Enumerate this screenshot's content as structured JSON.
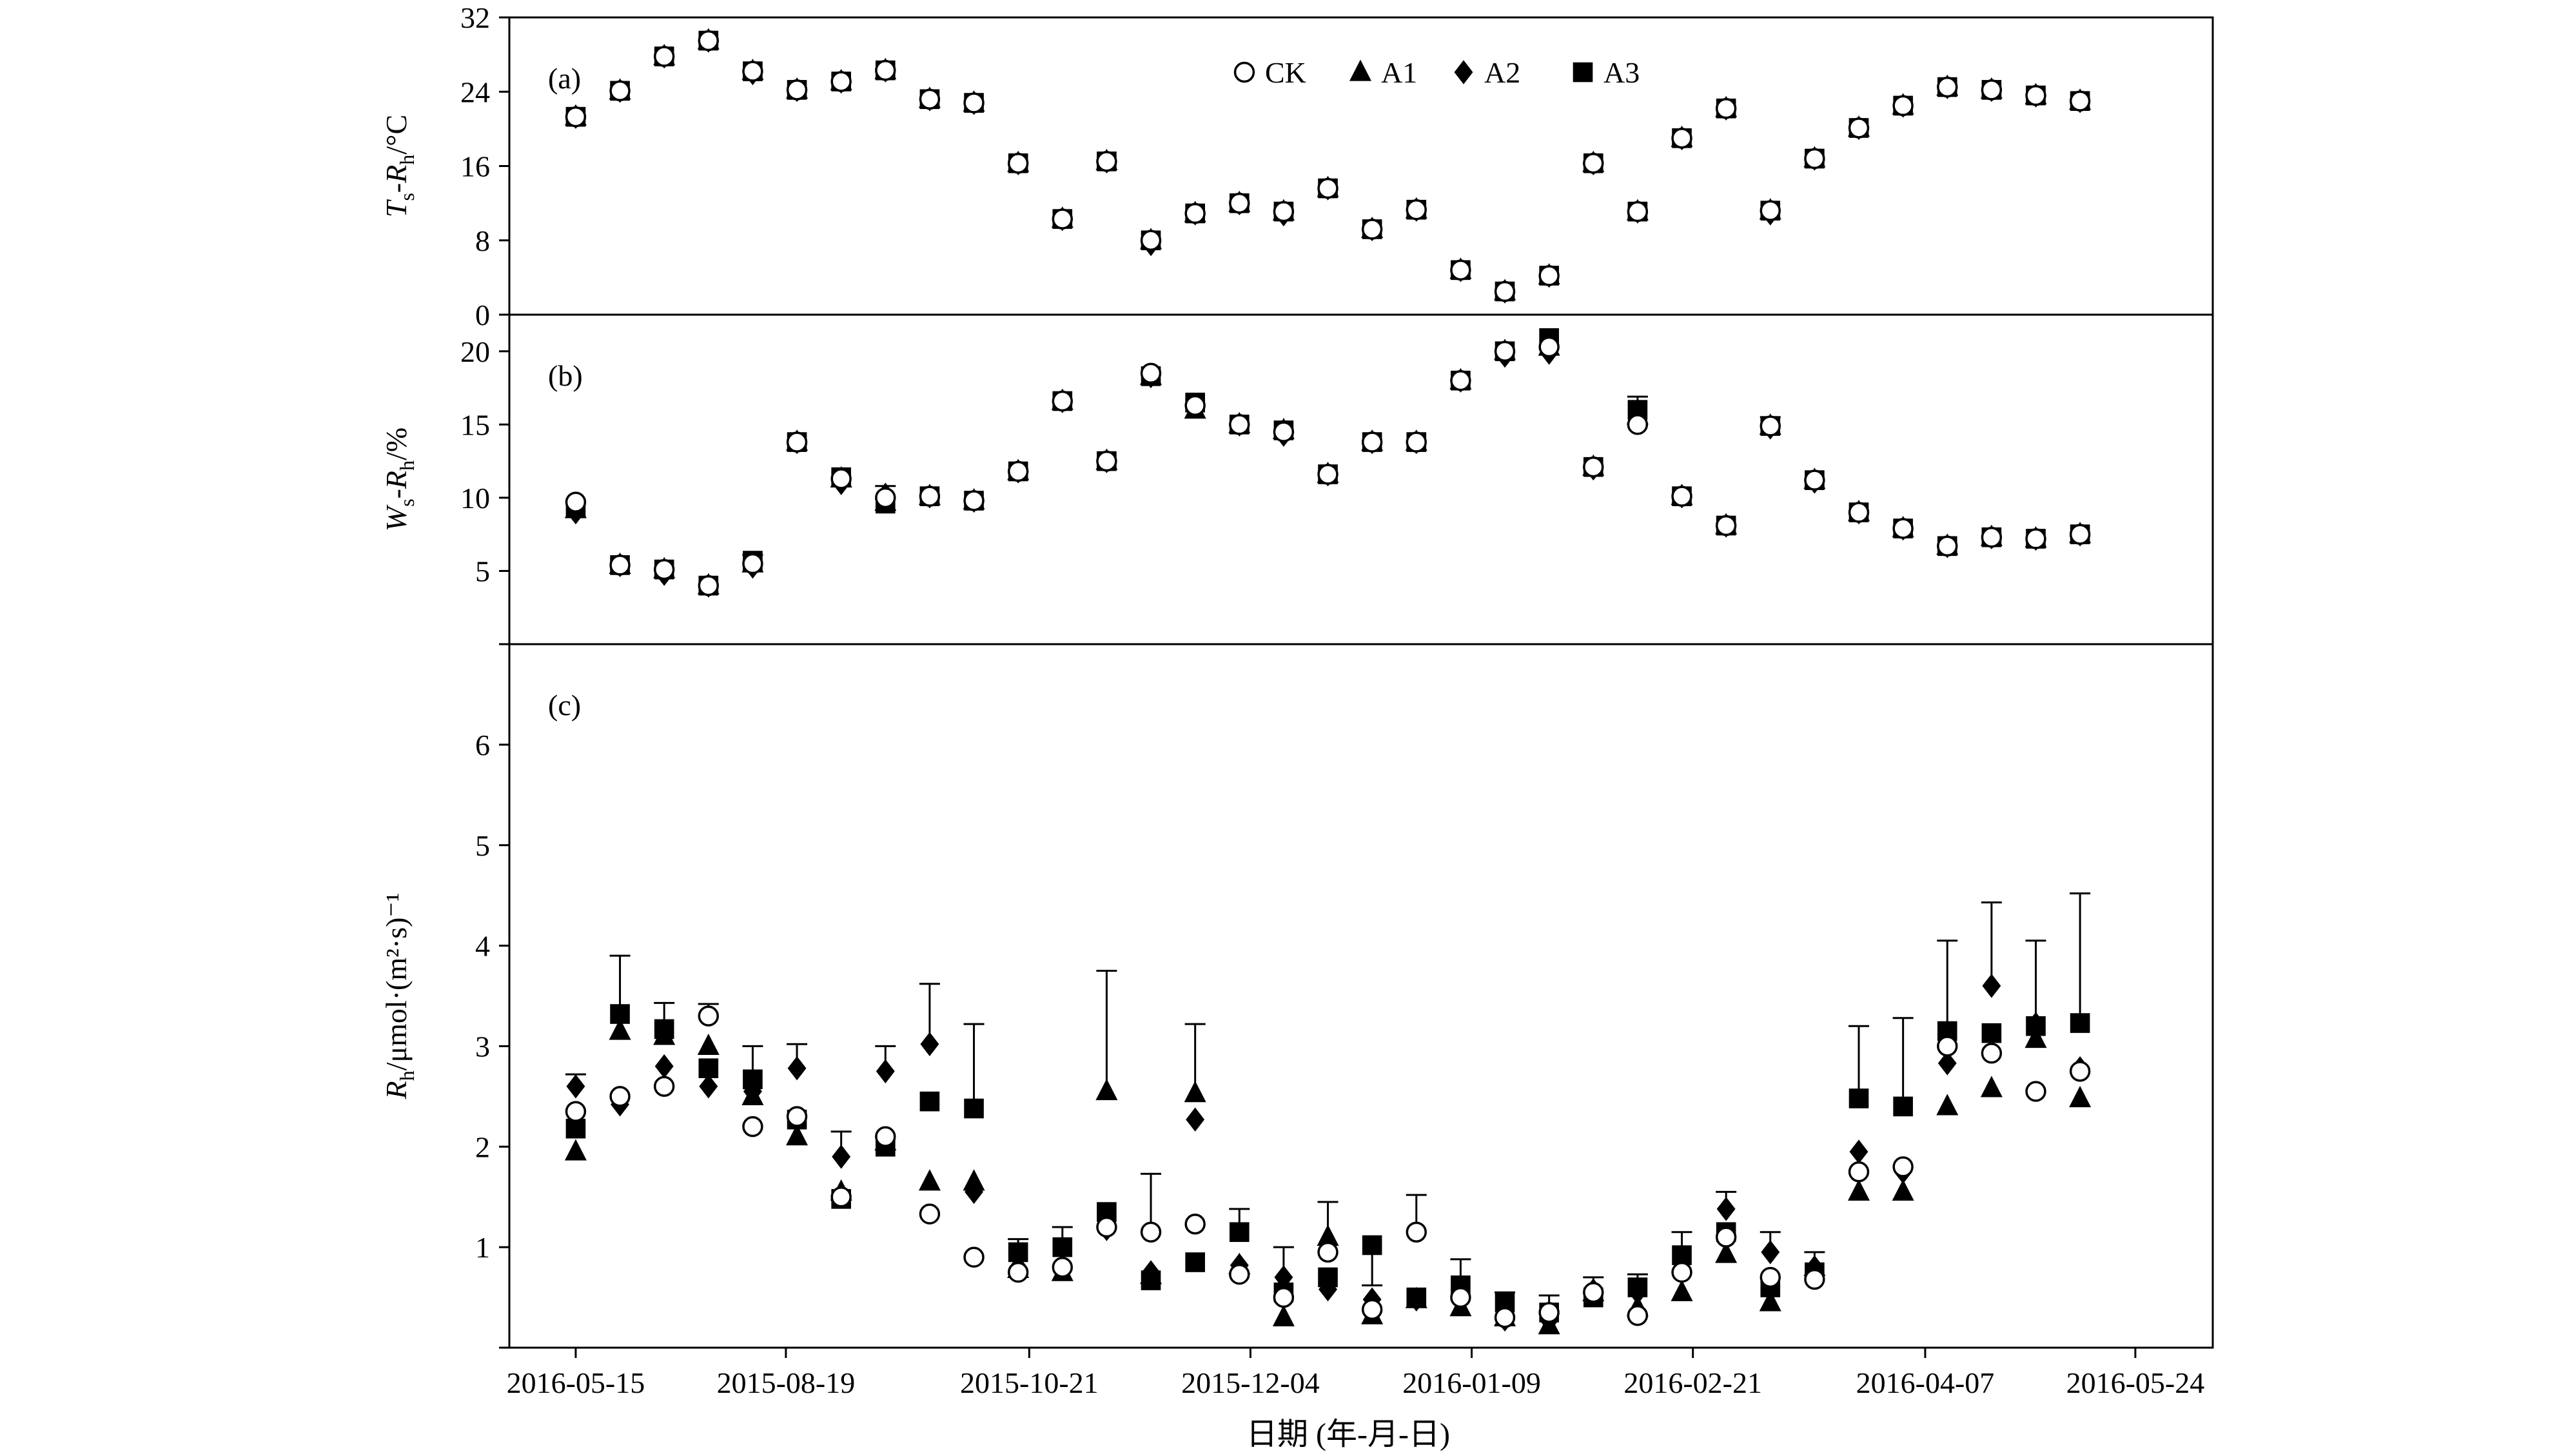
{
  "chart_data": {
    "type": "scatter",
    "x": {
      "label": "日期 (年-月-日)",
      "tick_labels": [
        "2016-05-15",
        "2015-08-19",
        "2015-10-21",
        "2015-12-04",
        "2016-01-09",
        "2016-02-21",
        "2016-04-07",
        "2016-05-24"
      ],
      "tick_positions": [
        0,
        4.75,
        10.25,
        15.25,
        20.25,
        25.25,
        30.5,
        35.25
      ],
      "range": [
        -1.5,
        37.0
      ]
    },
    "legend": {
      "placement": "top-center",
      "entries": [
        "CK",
        "A1",
        "A2",
        "A3"
      ]
    },
    "series_markers": {
      "CK": "open-circle",
      "A1": "triangle",
      "A2": "diamond",
      "A3": "square"
    },
    "panels": [
      {
        "label": "(a)",
        "ylabel_main": "T",
        "ylabel_sub1": "s",
        "ylabel_mid": "-R",
        "ylabel_sub2": "h",
        "ylabel_unit": "/°C",
        "ylim": [
          0,
          32
        ],
        "yticks": [
          0,
          8,
          16,
          24,
          32
        ],
        "x": [
          0,
          1,
          2,
          3,
          4,
          5,
          6,
          7,
          8,
          9,
          10,
          11,
          12,
          13,
          14,
          15,
          16,
          17,
          18,
          19,
          20,
          21,
          22,
          23,
          24,
          25,
          26,
          27,
          28,
          29,
          30,
          31,
          32,
          33,
          34,
          35
        ],
        "series": [
          {
            "name": "CK",
            "values": [
              21.3,
              24.1,
              27.8,
              29.5,
              26.2,
              24.2,
              25.1,
              26.3,
              23.2,
              22.8,
              16.3,
              10.3,
              16.5,
              8.0,
              10.9,
              12.0,
              11.1,
              13.6,
              9.2,
              11.3,
              4.8,
              2.5,
              4.2,
              16.3,
              11.1,
              19.0,
              22.2,
              11.2,
              16.8,
              20.1,
              22.5,
              24.5,
              24.2,
              23.6,
              23.0,
              null
            ]
          },
          {
            "name": "A1",
            "values": [
              21.3,
              24.1,
              27.8,
              29.5,
              26.2,
              24.2,
              25.1,
              26.3,
              23.2,
              22.8,
              16.3,
              10.3,
              16.5,
              8.0,
              10.9,
              12.0,
              11.1,
              13.6,
              9.2,
              11.3,
              4.8,
              2.5,
              4.2,
              16.3,
              11.1,
              19.0,
              22.2,
              11.2,
              16.8,
              20.1,
              22.5,
              24.5,
              24.2,
              23.6,
              23.0,
              null
            ]
          },
          {
            "name": "A2",
            "values": [
              21.3,
              24.1,
              27.8,
              29.5,
              26.0,
              24.2,
              25.1,
              26.3,
              23.2,
              22.8,
              16.3,
              10.3,
              16.5,
              7.6,
              10.9,
              12.0,
              10.8,
              13.6,
              9.2,
              11.3,
              4.8,
              2.5,
              4.2,
              16.3,
              11.1,
              19.0,
              22.2,
              10.9,
              16.8,
              20.1,
              22.5,
              24.5,
              24.2,
              23.6,
              23.0,
              null
            ]
          },
          {
            "name": "A3",
            "values": [
              21.3,
              24.1,
              27.8,
              29.5,
              26.2,
              24.2,
              25.1,
              26.3,
              23.2,
              22.8,
              16.3,
              10.3,
              16.5,
              8.0,
              10.9,
              12.0,
              11.1,
              13.6,
              9.2,
              11.3,
              4.8,
              2.5,
              4.2,
              16.3,
              11.1,
              19.0,
              22.2,
              11.2,
              16.8,
              20.1,
              22.5,
              24.5,
              24.2,
              23.6,
              23.0,
              null
            ]
          }
        ]
      },
      {
        "label": "(b)",
        "ylabel_main": "W",
        "ylabel_sub1": "s",
        "ylabel_mid": "-R",
        "ylabel_sub2": "h",
        "ylabel_unit": "/%",
        "ylim": [
          0,
          22.5
        ],
        "yticks": [
          0,
          5,
          10,
          15,
          20
        ],
        "x": [
          0,
          1,
          2,
          3,
          4,
          5,
          6,
          7,
          8,
          9,
          10,
          11,
          12,
          13,
          14,
          15,
          16,
          17,
          18,
          19,
          20,
          21,
          22,
          23,
          24,
          25,
          26,
          27,
          28,
          29,
          30,
          31,
          32,
          33,
          34,
          35
        ],
        "series": [
          {
            "name": "CK",
            "values": [
              9.7,
              5.4,
              5.1,
              4.0,
              5.5,
              13.8,
              11.3,
              10.0,
              10.1,
              9.8,
              11.8,
              16.6,
              12.5,
              18.5,
              16.3,
              15.0,
              14.5,
              11.6,
              13.8,
              13.8,
              18.0,
              20.0,
              20.3,
              12.1,
              15.0,
              10.1,
              8.1,
              14.9,
              11.2,
              9.0,
              7.9,
              6.7,
              7.3,
              7.2,
              7.5,
              null
            ]
          },
          {
            "name": "A1",
            "values": [
              9.2,
              5.4,
              5.1,
              4.0,
              5.5,
              13.8,
              11.3,
              9.7,
              10.1,
              9.8,
              11.8,
              16.6,
              12.5,
              18.3,
              16.0,
              15.0,
              14.6,
              11.6,
              13.8,
              13.8,
              18.0,
              20.0,
              20.3,
              12.1,
              15.6,
              10.1,
              8.1,
              14.9,
              11.2,
              9.0,
              7.9,
              6.7,
              7.3,
              7.2,
              7.5,
              null
            ]
          },
          {
            "name": "A2",
            "values": [
              9.0,
              5.4,
              4.8,
              4.0,
              5.3,
              13.8,
              11.0,
              10.2,
              10.1,
              9.8,
              11.8,
              16.6,
              12.5,
              18.3,
              16.3,
              15.0,
              14.3,
              11.6,
              13.8,
              13.8,
              18.0,
              19.7,
              19.9,
              12.0,
              15.6,
              10.1,
              8.1,
              14.8,
              11.1,
              9.0,
              7.9,
              6.7,
              7.3,
              7.2,
              7.5,
              null
            ]
          },
          {
            "name": "A3",
            "values": [
              9.3,
              5.4,
              5.1,
              4.0,
              5.7,
              13.8,
              11.4,
              9.6,
              10.1,
              9.8,
              11.8,
              16.6,
              12.5,
              18.3,
              16.5,
              15.0,
              14.6,
              11.6,
              13.8,
              13.8,
              18.0,
              20.0,
              20.9,
              12.1,
              16.0,
              10.1,
              8.1,
              14.9,
              11.2,
              9.0,
              7.9,
              6.7,
              7.3,
              7.2,
              7.5,
              null
            ]
          }
        ],
        "error_top": [
          null,
          null,
          null,
          null,
          6.1,
          null,
          null,
          10.8,
          null,
          null,
          null,
          null,
          null,
          null,
          null,
          null,
          null,
          null,
          null,
          null,
          null,
          null,
          null,
          null,
          16.9,
          null,
          null,
          15.5,
          null,
          null,
          null,
          null,
          null,
          null,
          null,
          null
        ]
      },
      {
        "label": "(c)",
        "ylabel_main": "R",
        "ylabel_sub1": "h",
        "ylabel_mid": "",
        "ylabel_sub2": "",
        "ylabel_unit": "/μmol·(m²·s)⁻¹",
        "ylim": [
          0,
          7
        ],
        "yticks": [
          0,
          1,
          2,
          3,
          4,
          5,
          6
        ],
        "x": [
          0,
          1,
          2,
          3,
          4,
          5,
          6,
          7,
          8,
          9,
          10,
          11,
          12,
          13,
          14,
          15,
          16,
          17,
          18,
          19,
          20,
          21,
          22,
          23,
          24,
          25,
          26,
          27,
          28,
          29,
          30,
          31,
          32,
          33,
          34,
          35
        ],
        "series": [
          {
            "name": "CK",
            "values": [
              2.35,
              2.5,
              2.6,
              3.3,
              2.2,
              2.3,
              1.5,
              2.1,
              1.33,
              0.9,
              0.75,
              0.8,
              1.2,
              1.15,
              1.23,
              0.73,
              0.5,
              0.95,
              0.38,
              1.15,
              0.5,
              0.3,
              0.35,
              0.55,
              0.32,
              0.75,
              1.1,
              0.7,
              0.68,
              1.75,
              1.8,
              3.0,
              2.93,
              2.55,
              2.75,
              null
            ]
          },
          {
            "name": "A1",
            "values": [
              1.95,
              3.15,
              3.1,
              3.0,
              2.5,
              2.1,
              1.55,
              2.05,
              1.65,
              1.65,
              0.78,
              0.75,
              2.55,
              0.72,
              2.53,
              0.82,
              0.3,
              1.1,
              0.32,
              0.48,
              0.4,
              0.3,
              0.22,
              0.55,
              0.4,
              0.55,
              0.93,
              0.45,
              0.8,
              1.55,
              1.55,
              2.4,
              2.58,
              3.07,
              2.48,
              null
            ]
          },
          {
            "name": "A2",
            "values": [
              2.6,
              2.42,
              2.8,
              2.6,
              2.55,
              2.78,
              1.9,
              2.75,
              3.02,
              1.55,
              0.8,
              0.8,
              1.18,
              0.75,
              2.27,
              0.82,
              0.7,
              0.58,
              0.48,
              0.48,
              0.5,
              0.28,
              0.27,
              0.57,
              0.55,
              0.85,
              1.38,
              0.95,
              0.8,
              1.95,
              1.75,
              2.83,
              3.6,
              3.22,
              2.78,
              null
            ]
          },
          {
            "name": "A3",
            "values": [
              2.18,
              3.32,
              3.17,
              2.78,
              2.67,
              2.27,
              1.48,
              2.0,
              2.45,
              2.38,
              0.95,
              1.0,
              1.35,
              0.67,
              0.85,
              1.15,
              0.55,
              0.7,
              1.02,
              0.5,
              0.62,
              0.45,
              0.35,
              0.5,
              0.6,
              0.92,
              1.15,
              0.6,
              0.75,
              2.48,
              2.4,
              3.15,
              3.13,
              3.2,
              3.23,
              null
            ]
          }
        ],
        "error_top": [
          2.72,
          3.9,
          3.43,
          3.42,
          3.0,
          3.02,
          2.15,
          3.0,
          3.62,
          3.22,
          1.08,
          1.2,
          3.75,
          1.73,
          3.22,
          1.38,
          1.0,
          1.45,
          0.62,
          1.52,
          0.88,
          0.55,
          0.52,
          0.7,
          0.73,
          1.15,
          1.55,
          1.15,
          0.95,
          3.2,
          3.28,
          4.05,
          4.43,
          4.05,
          4.52,
          null
        ]
      }
    ]
  }
}
